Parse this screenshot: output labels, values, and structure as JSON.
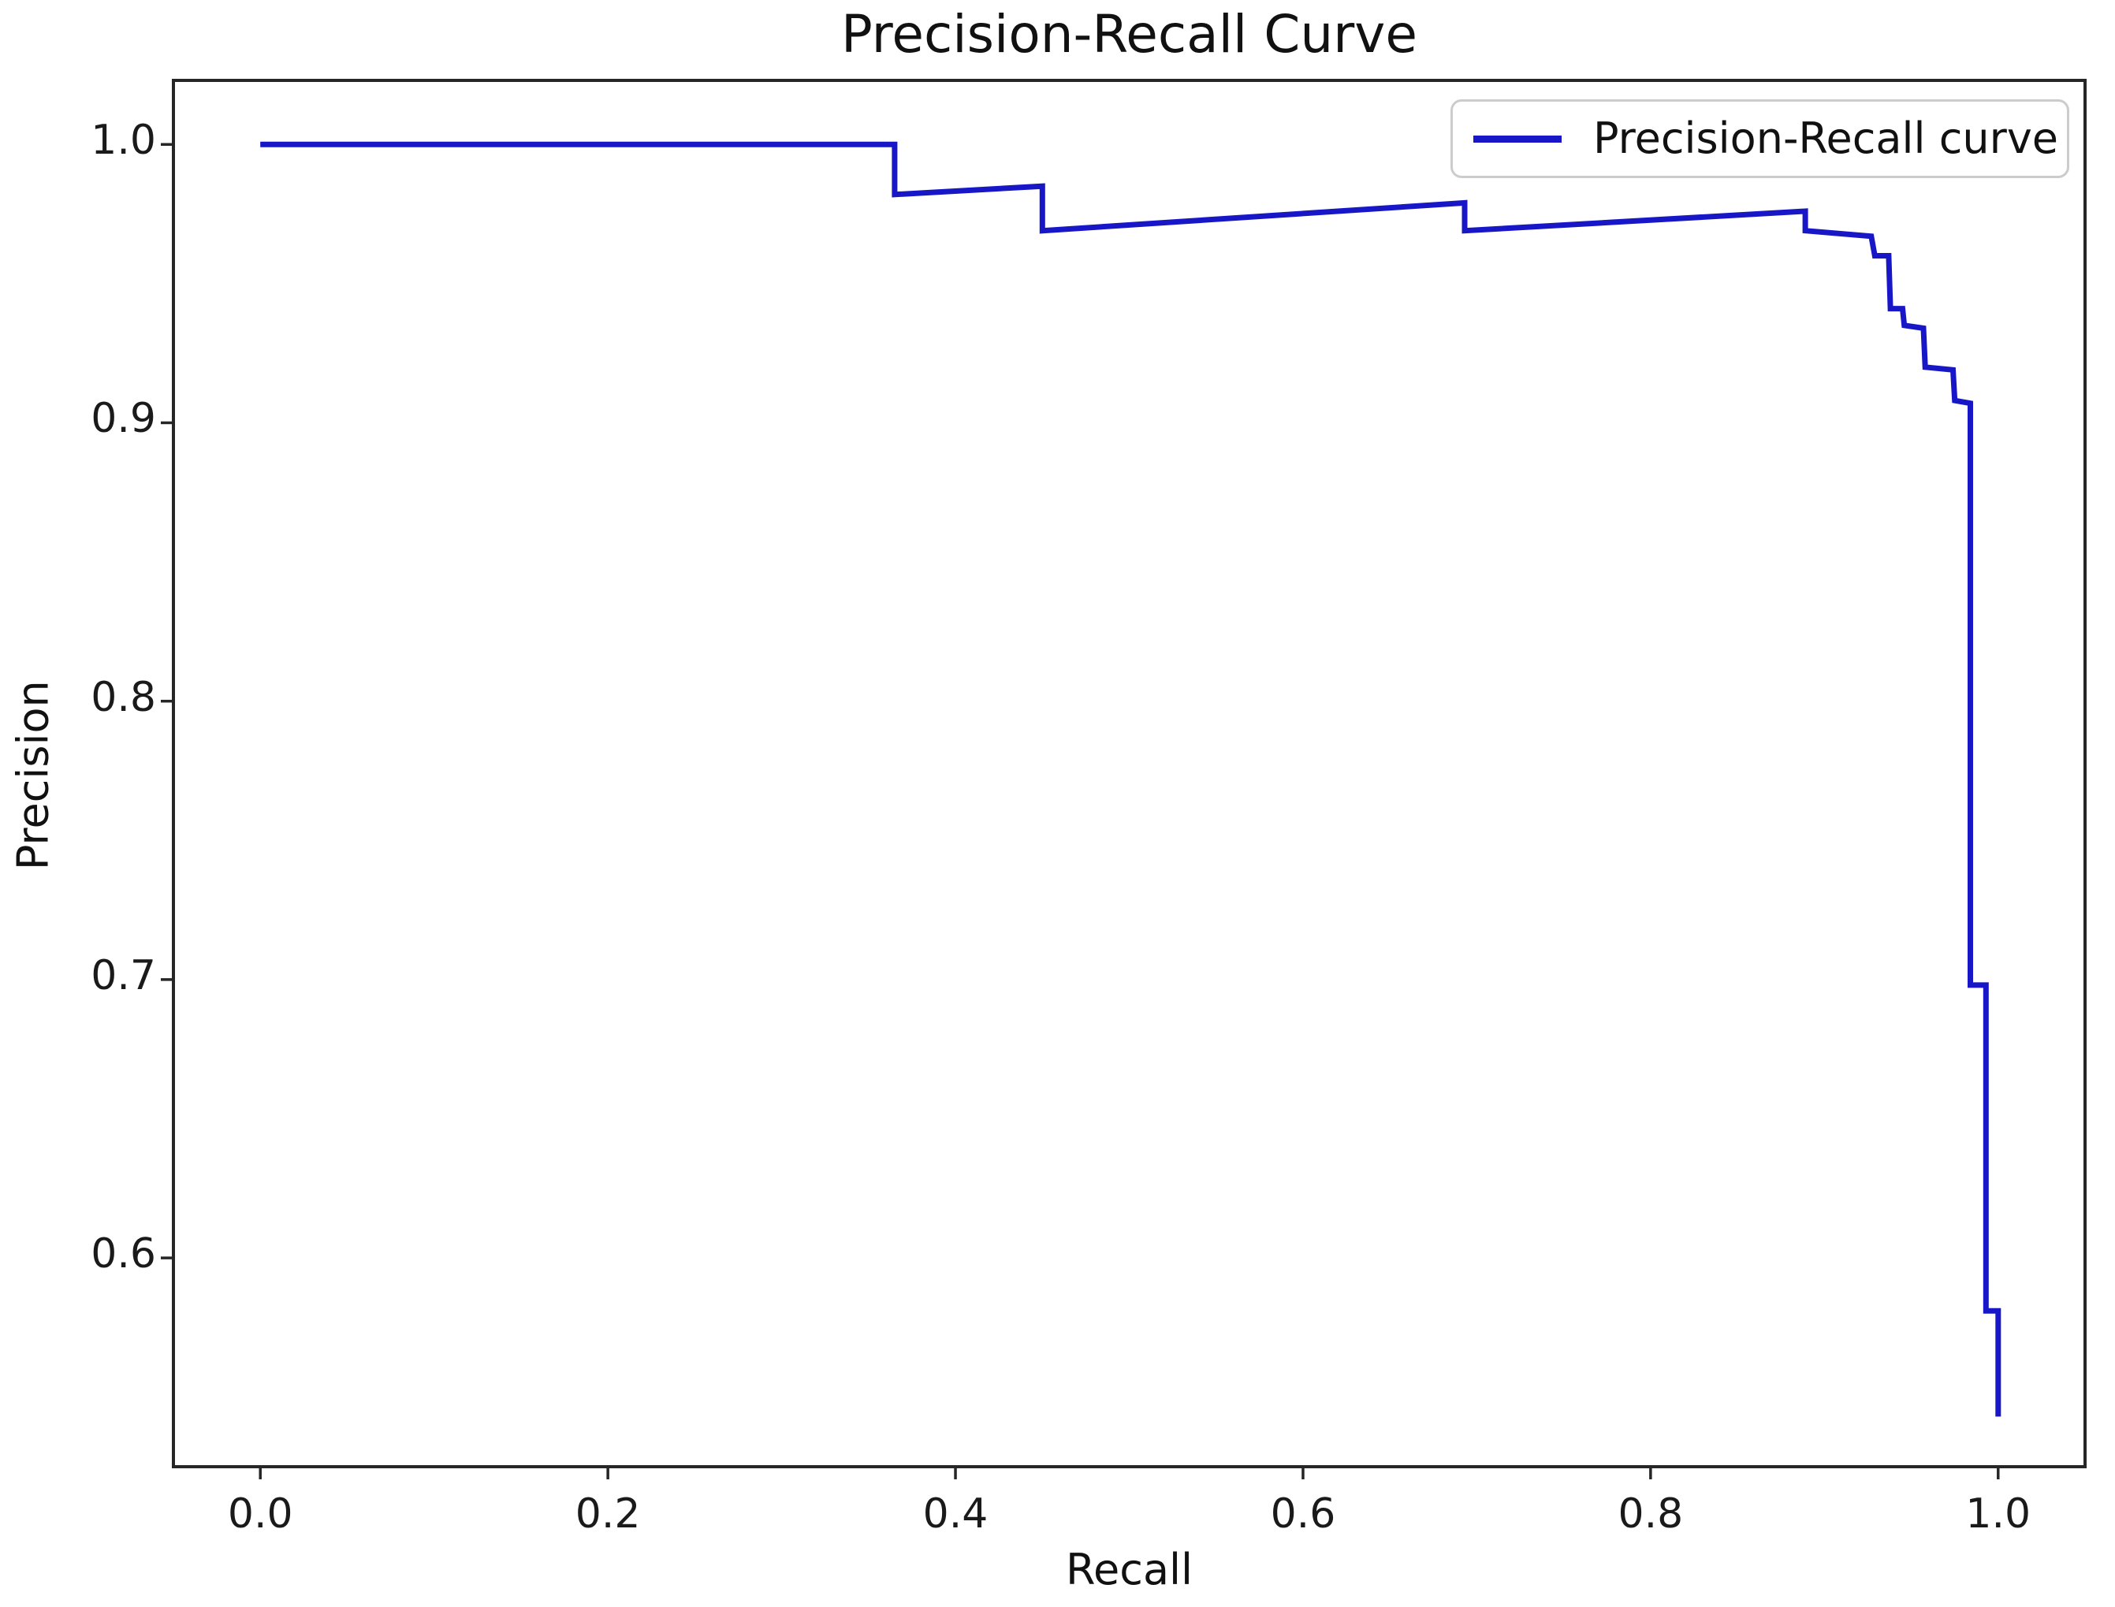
{
  "chart_data": {
    "type": "line",
    "title": "Precision-Recall Curve",
    "xlabel": "Recall",
    "ylabel": "Precision",
    "legend": [
      "Precision-Recall curve"
    ],
    "legend_position": "upper right",
    "grid": false,
    "xlim": [
      -0.05,
      1.05
    ],
    "ylim": [
      0.525,
      1.023
    ],
    "x_ticks": [
      "0.0",
      "0.2",
      "0.4",
      "0.6",
      "0.8",
      "1.0"
    ],
    "y_ticks": [
      "0.6",
      "0.7",
      "0.8",
      "0.9",
      "1.0"
    ],
    "series": [
      {
        "name": "Precision-Recall curve",
        "color": "#1717c8",
        "points": [
          [
            0.0,
            1.0
          ],
          [
            0.365,
            1.0
          ],
          [
            0.365,
            0.982
          ],
          [
            0.45,
            0.985
          ],
          [
            0.45,
            0.969
          ],
          [
            0.693,
            0.979
          ],
          [
            0.693,
            0.969
          ],
          [
            0.889,
            0.976
          ],
          [
            0.889,
            0.969
          ],
          [
            0.927,
            0.967
          ],
          [
            0.929,
            0.96
          ],
          [
            0.937,
            0.96
          ],
          [
            0.938,
            0.941
          ],
          [
            0.945,
            0.941
          ],
          [
            0.946,
            0.935
          ],
          [
            0.957,
            0.934
          ],
          [
            0.958,
            0.92
          ],
          [
            0.974,
            0.919
          ],
          [
            0.975,
            0.908
          ],
          [
            0.984,
            0.907
          ],
          [
            0.984,
            0.698
          ],
          [
            0.993,
            0.698
          ],
          [
            0.993,
            0.581
          ],
          [
            1.0,
            0.581
          ],
          [
            1.0,
            0.543
          ]
        ]
      }
    ],
    "colors": {
      "line": "#1717c8",
      "axis": "#262626",
      "text": "#1a1a1a",
      "legend_border": "#cccccc",
      "background": "#ffffff"
    }
  }
}
